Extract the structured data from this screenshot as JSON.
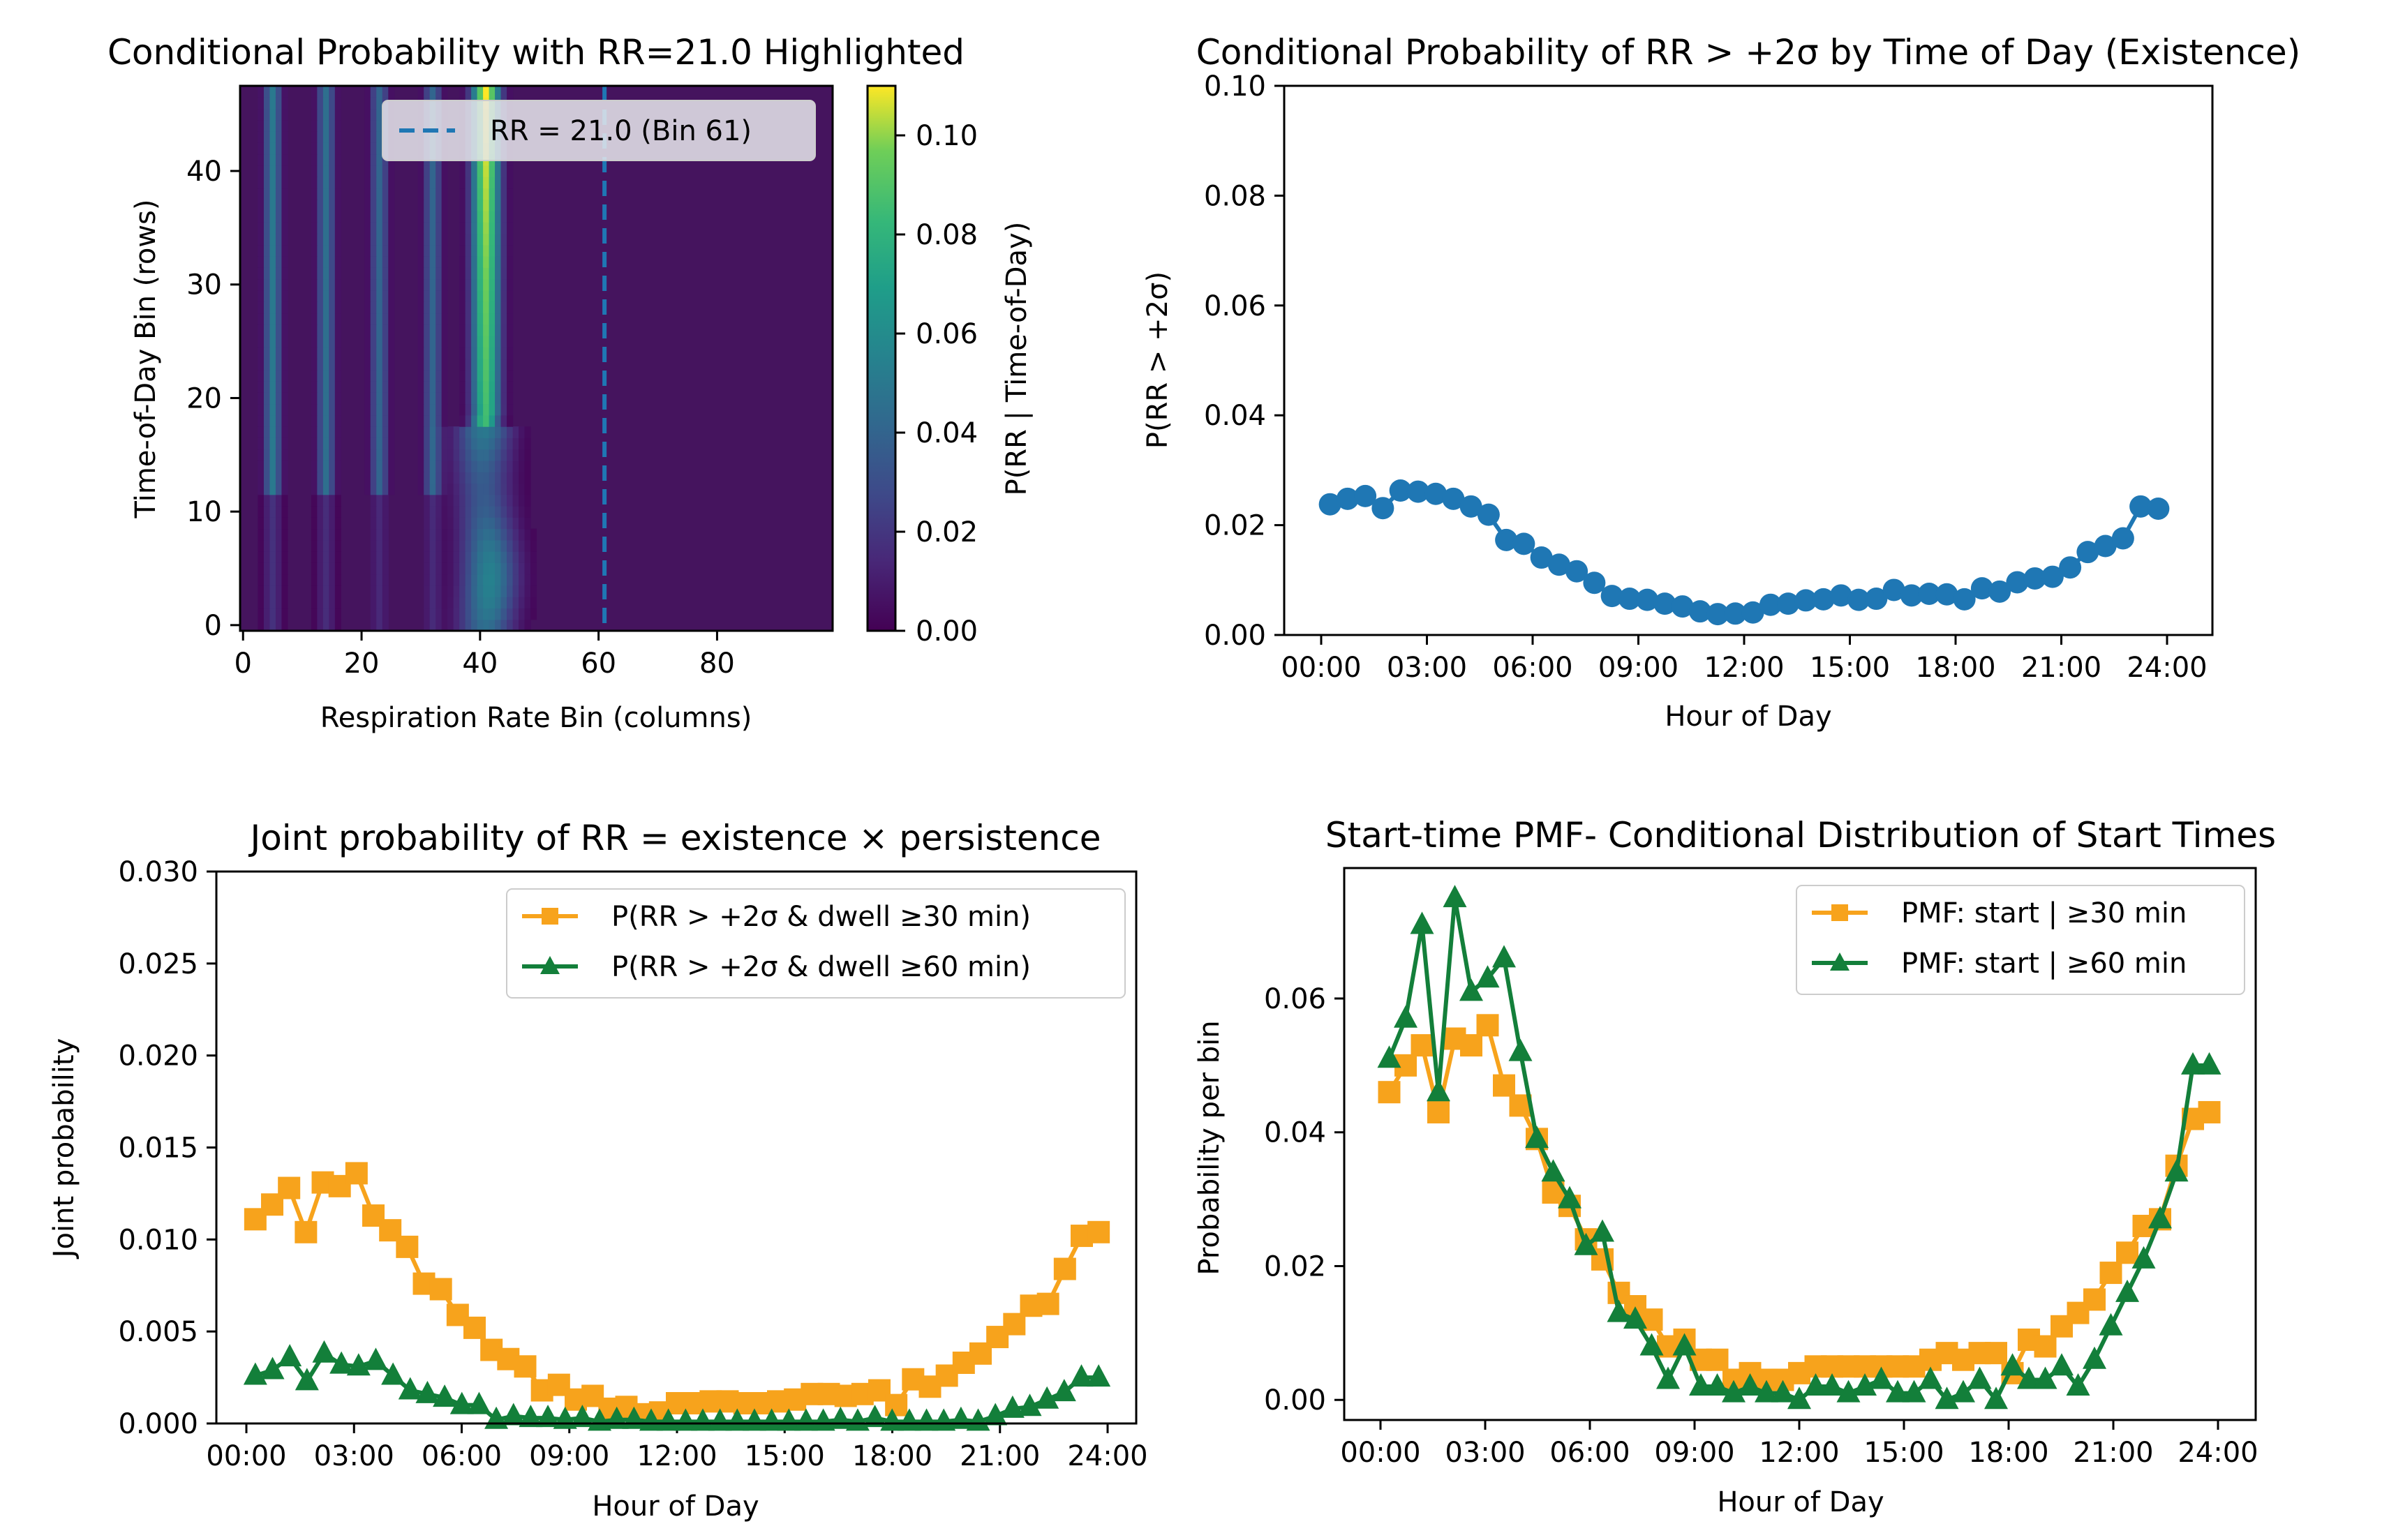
{
  "figure": {
    "colors": {
      "blue": "#1f77b4",
      "orange": "#f7a31c",
      "green": "#137f3a",
      "heat_bg": "#45145e"
    }
  },
  "chart_data": [
    {
      "type": "heatmap",
      "title": "Conditional Probability with RR=21.0 Highlighted",
      "xlabel": "Respiration Rate Bin (columns)",
      "ylabel": "Time-of-Day Bin (rows)",
      "x_ticks": [
        0,
        20,
        40,
        60,
        80
      ],
      "y_ticks": [
        0,
        10,
        20,
        30,
        40
      ],
      "xlim": [
        -0.5,
        99.5
      ],
      "ylim": [
        -0.5,
        47.5
      ],
      "colormap": "viridis",
      "colorbar": {
        "label": "P(RR | Time-of-Day)",
        "range": [
          0,
          0.11
        ],
        "ticks": [
          "0.00",
          "0.02",
          "0.04",
          "0.06",
          "0.08",
          "0.10"
        ]
      },
      "highlight": {
        "bin": 61,
        "legend": "RR = 21.0 (Bin 61)"
      },
      "ridges": [
        {
          "center": 5,
          "peak": 0.05
        },
        {
          "center": 14,
          "peak": 0.045
        },
        {
          "center": 23,
          "peak": 0.04
        },
        {
          "center": 32,
          "peak": 0.04
        },
        {
          "center": 41,
          "peak": 0.11
        }
      ]
    },
    {
      "type": "scatter",
      "title": "Conditional Probability of RR > +2σ by Time of Day (Existence)",
      "xlabel": "Hour of Day",
      "ylabel": "P(RR > +2σ)",
      "ylim": [
        0,
        0.1
      ],
      "y_ticks": [
        "0.00",
        "0.02",
        "0.04",
        "0.06",
        "0.08",
        "0.10"
      ],
      "x_ticks": [
        "00:00",
        "03:00",
        "06:00",
        "09:00",
        "12:00",
        "15:00",
        "18:00",
        "21:00",
        "24:00"
      ],
      "series": [
        {
          "name": "P(RR > +2σ)",
          "hours": [
            0.25,
            0.75,
            1.25,
            1.75,
            2.25,
            2.75,
            3.25,
            3.75,
            4.25,
            4.75,
            5.25,
            5.75,
            6.25,
            6.75,
            7.25,
            7.75,
            8.25,
            8.75,
            9.25,
            9.75,
            10.25,
            10.75,
            11.25,
            11.75,
            12.25,
            12.75,
            13.25,
            13.75,
            14.25,
            14.75,
            15.25,
            15.75,
            16.25,
            16.75,
            17.25,
            17.75,
            18.25,
            18.75,
            19.25,
            19.75,
            20.25,
            20.75,
            21.25,
            21.75,
            22.25,
            22.75,
            23.25,
            23.75
          ],
          "values": [
            0.0238,
            0.0248,
            0.0253,
            0.0231,
            0.0263,
            0.0261,
            0.0257,
            0.0248,
            0.0234,
            0.0219,
            0.0173,
            0.0166,
            0.0141,
            0.0128,
            0.0116,
            0.0095,
            0.0071,
            0.0066,
            0.0064,
            0.0057,
            0.0052,
            0.0043,
            0.0038,
            0.0039,
            0.0041,
            0.0055,
            0.0057,
            0.0063,
            0.0065,
            0.0072,
            0.0064,
            0.0066,
            0.0082,
            0.0072,
            0.0075,
            0.0074,
            0.0065,
            0.0085,
            0.0079,
            0.0096,
            0.0103,
            0.0106,
            0.0123,
            0.0151,
            0.0162,
            0.0176,
            0.0234,
            0.023
          ]
        }
      ]
    },
    {
      "type": "line",
      "title": "Joint probability of RR = existence × persistence",
      "xlabel": "Hour of Day",
      "ylabel": "Joint probability",
      "ylim": [
        0,
        0.03
      ],
      "y_ticks": [
        "0.000",
        "0.005",
        "0.010",
        "0.015",
        "0.020",
        "0.025",
        "0.030"
      ],
      "x_ticks": [
        "00:00",
        "03:00",
        "06:00",
        "09:00",
        "12:00",
        "15:00",
        "18:00",
        "21:00",
        "24:00"
      ],
      "legend": "top-right",
      "series": [
        {
          "name": "P(RR > +2σ & dwell ≥30 min)",
          "marker": "square",
          "color_key": "orange",
          "values": [
            0.0111,
            0.0119,
            0.0128,
            0.0104,
            0.0131,
            0.0129,
            0.0136,
            0.0113,
            0.0105,
            0.0096,
            0.0076,
            0.0073,
            0.0059,
            0.0052,
            0.004,
            0.0035,
            0.0031,
            0.0018,
            0.0021,
            0.0013,
            0.0015,
            0.0008,
            0.0009,
            0.0005,
            0.0006,
            0.0011,
            0.0011,
            0.0012,
            0.0012,
            0.0011,
            0.0011,
            0.0012,
            0.0013,
            0.0016,
            0.0016,
            0.0015,
            0.0016,
            0.0018,
            0.001,
            0.0024,
            0.002,
            0.0026,
            0.0033,
            0.0038,
            0.0047,
            0.0054,
            0.0064,
            0.0065,
            0.0084,
            0.0102,
            0.0104
          ]
        },
        {
          "name": "P(RR > +2σ & dwell ≥60 min)",
          "marker": "triangle",
          "color_key": "green",
          "values": [
            0.0026,
            0.0029,
            0.0036,
            0.0023,
            0.0038,
            0.0032,
            0.0031,
            0.0034,
            0.0026,
            0.0018,
            0.0016,
            0.0014,
            0.001,
            0.001,
            0.0002,
            0.0004,
            0.0003,
            0.0003,
            0.0002,
            0.0003,
            0.0001,
            0.0002,
            0.0002,
            0.0001,
            0.0001,
            0.0001,
            0.0001,
            0.0001,
            0.0001,
            0.0001,
            0.0001,
            0.0001,
            0.0001,
            0.0001,
            0.0002,
            0.0001,
            0.0003,
            0.0001,
            0.0001,
            0.0001,
            0.0001,
            0.0002,
            0.0001,
            0.0004,
            0.0008,
            0.0009,
            0.0013,
            0.0017,
            0.0025,
            0.0025
          ]
        }
      ]
    },
    {
      "type": "line",
      "title": "Start-time PMF- Conditional Distribution of Start Times",
      "xlabel": "Hour of Day",
      "ylabel": "Probability per bin",
      "ylim": [
        -0.003,
        0.0795
      ],
      "y_ticks": [
        "0.00",
        "0.02",
        "0.04",
        "0.06"
      ],
      "x_ticks": [
        "00:00",
        "03:00",
        "06:00",
        "09:00",
        "12:00",
        "15:00",
        "18:00",
        "21:00",
        "24:00"
      ],
      "legend": "top-right",
      "series": [
        {
          "name": "PMF: start | ≥30 min",
          "marker": "square",
          "color_key": "orange",
          "values": [
            0.046,
            0.05,
            0.053,
            0.043,
            0.054,
            0.053,
            0.056,
            0.047,
            0.044,
            0.039,
            0.031,
            0.029,
            0.024,
            0.021,
            0.016,
            0.014,
            0.012,
            0.008,
            0.009,
            0.006,
            0.006,
            0.003,
            0.004,
            0.003,
            0.003,
            0.004,
            0.005,
            0.005,
            0.005,
            0.005,
            0.005,
            0.005,
            0.005,
            0.006,
            0.007,
            0.006,
            0.007,
            0.007,
            0.004,
            0.009,
            0.008,
            0.011,
            0.013,
            0.015,
            0.019,
            0.022,
            0.026,
            0.027,
            0.035,
            0.042,
            0.043
          ]
        },
        {
          "name": "PMF: start | ≥60 min",
          "marker": "triangle",
          "color_key": "green",
          "values": [
            0.051,
            0.057,
            0.071,
            0.046,
            0.075,
            0.061,
            0.063,
            0.066,
            0.052,
            0.039,
            0.034,
            0.03,
            0.023,
            0.025,
            0.013,
            0.012,
            0.008,
            0.003,
            0.008,
            0.002,
            0.002,
            0.001,
            0.002,
            0.001,
            0.001,
            0.0,
            0.002,
            0.002,
            0.001,
            0.002,
            0.003,
            0.001,
            0.001,
            0.003,
            0.0,
            0.001,
            0.003,
            0.0,
            0.005,
            0.003,
            0.003,
            0.005,
            0.002,
            0.006,
            0.011,
            0.016,
            0.021,
            0.027,
            0.034,
            0.05,
            0.05
          ]
        }
      ]
    }
  ]
}
